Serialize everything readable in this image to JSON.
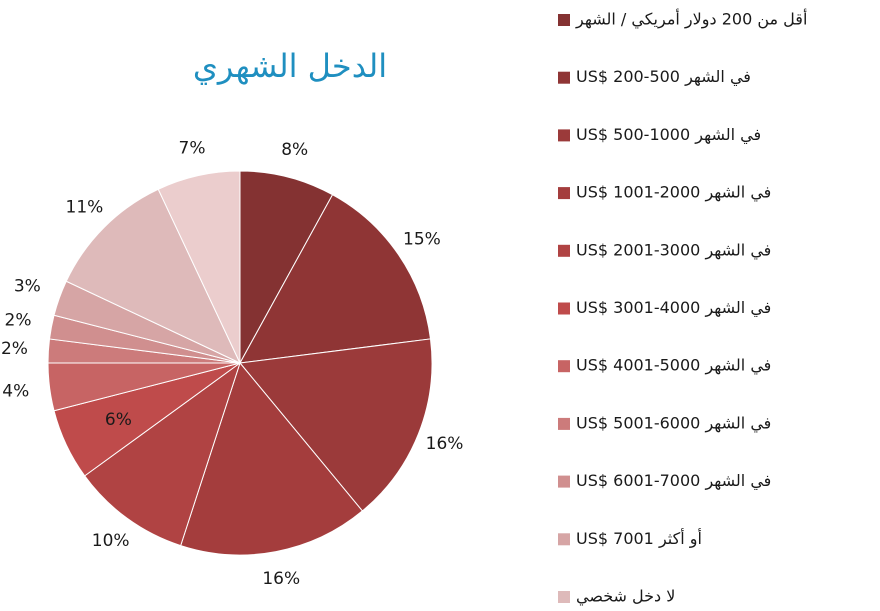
{
  "chart_data": {
    "type": "pie",
    "title": "الدخل الشهري",
    "categories": [
      "أقل من 200 دولار أمريكي / الشهر",
      "US$ 200-500 في الشهر",
      "US$ 500-1000 في الشهر",
      "US$ 1001-2000 في الشهر",
      "US$ 2001-3000 في الشهر",
      "US$ 3001-4000 في الشهر",
      "US$ 4001-5000 في الشهر",
      "US$ 5001-6000 في الشهر",
      "US$ 6001-7000 في الشهر",
      "US$ 7001 أو أكثر",
      "لا دخل شخصي",
      null
    ],
    "values": [
      8,
      15,
      16,
      16,
      10,
      6,
      4,
      2,
      2,
      3,
      11,
      7
    ],
    "value_labels": [
      "8%",
      "15%",
      "16%",
      "16%",
      "10%",
      "6%",
      "4%",
      "2%",
      "2%",
      "3%",
      "11%",
      "7%"
    ],
    "colors": [
      "#843232",
      "#8f3535",
      "#9b3a3a",
      "#a43d3d",
      "#b04343",
      "#bf4b4b",
      "#c76464",
      "#cc7b7b",
      "#d08f8f",
      "#d6a5a5",
      "#debaba",
      "#ebcdcd"
    ]
  }
}
